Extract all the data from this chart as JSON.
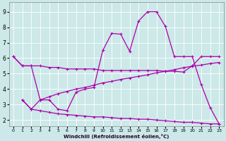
{
  "background_color": "#cce8e8",
  "line_color": "#aa00aa",
  "grid_color": "#ffffff",
  "xlim": [
    -0.5,
    23.5
  ],
  "ylim": [
    1.6,
    9.6
  ],
  "xticks": [
    0,
    1,
    2,
    3,
    4,
    5,
    6,
    7,
    8,
    9,
    10,
    11,
    12,
    13,
    14,
    15,
    16,
    17,
    18,
    19,
    20,
    21,
    22,
    23
  ],
  "yticks": [
    2,
    3,
    4,
    5,
    6,
    7,
    8,
    9
  ],
  "xlabel": "Windchill (Refroidissement éolien,°C)",
  "line1_x": [
    0,
    1,
    2,
    3,
    4,
    5,
    6,
    7,
    8,
    9,
    10,
    11,
    12,
    13,
    14,
    15,
    16,
    17,
    18,
    19,
    20,
    21,
    22,
    23
  ],
  "line1_y": [
    6.1,
    5.5,
    5.5,
    5.5,
    5.4,
    5.4,
    5.3,
    5.3,
    5.3,
    5.3,
    5.2,
    5.2,
    5.2,
    5.2,
    5.2,
    5.2,
    5.2,
    5.15,
    5.15,
    5.1,
    5.5,
    6.1,
    6.1,
    6.1
  ],
  "line2_x": [
    0,
    1,
    2,
    3,
    4,
    5,
    6,
    7,
    8,
    9,
    10,
    11,
    12,
    13,
    14,
    15,
    16,
    17,
    18,
    19,
    20,
    21,
    22,
    23
  ],
  "line2_y": [
    6.1,
    5.5,
    5.5,
    3.3,
    3.3,
    2.7,
    2.6,
    3.8,
    4.0,
    4.1,
    6.5,
    7.6,
    7.55,
    6.45,
    8.4,
    9.0,
    9.0,
    8.05,
    6.1,
    6.1,
    6.1,
    4.3,
    2.8,
    1.75
  ],
  "line3_x": [
    1,
    2,
    3,
    4,
    5,
    6,
    7,
    8,
    9,
    10,
    11,
    12,
    13,
    14,
    15,
    16,
    17,
    18,
    19,
    20,
    21,
    22,
    23
  ],
  "line3_y": [
    3.3,
    2.7,
    2.6,
    2.5,
    2.4,
    2.35,
    2.3,
    2.25,
    2.2,
    2.2,
    2.15,
    2.1,
    2.1,
    2.05,
    2.05,
    2.0,
    1.95,
    1.9,
    1.85,
    1.85,
    1.8,
    1.75,
    1.75
  ],
  "line4_x": [
    1,
    2,
    3,
    4,
    5,
    6,
    7,
    8,
    9,
    10,
    11,
    12,
    13,
    14,
    15,
    16,
    17,
    18,
    19,
    20,
    21,
    22,
    23
  ],
  "line4_y": [
    3.3,
    2.7,
    3.3,
    3.5,
    3.7,
    3.85,
    4.0,
    4.1,
    4.25,
    4.4,
    4.5,
    4.62,
    4.72,
    4.82,
    4.92,
    5.05,
    5.15,
    5.25,
    5.38,
    5.48,
    5.55,
    5.65,
    5.72
  ]
}
